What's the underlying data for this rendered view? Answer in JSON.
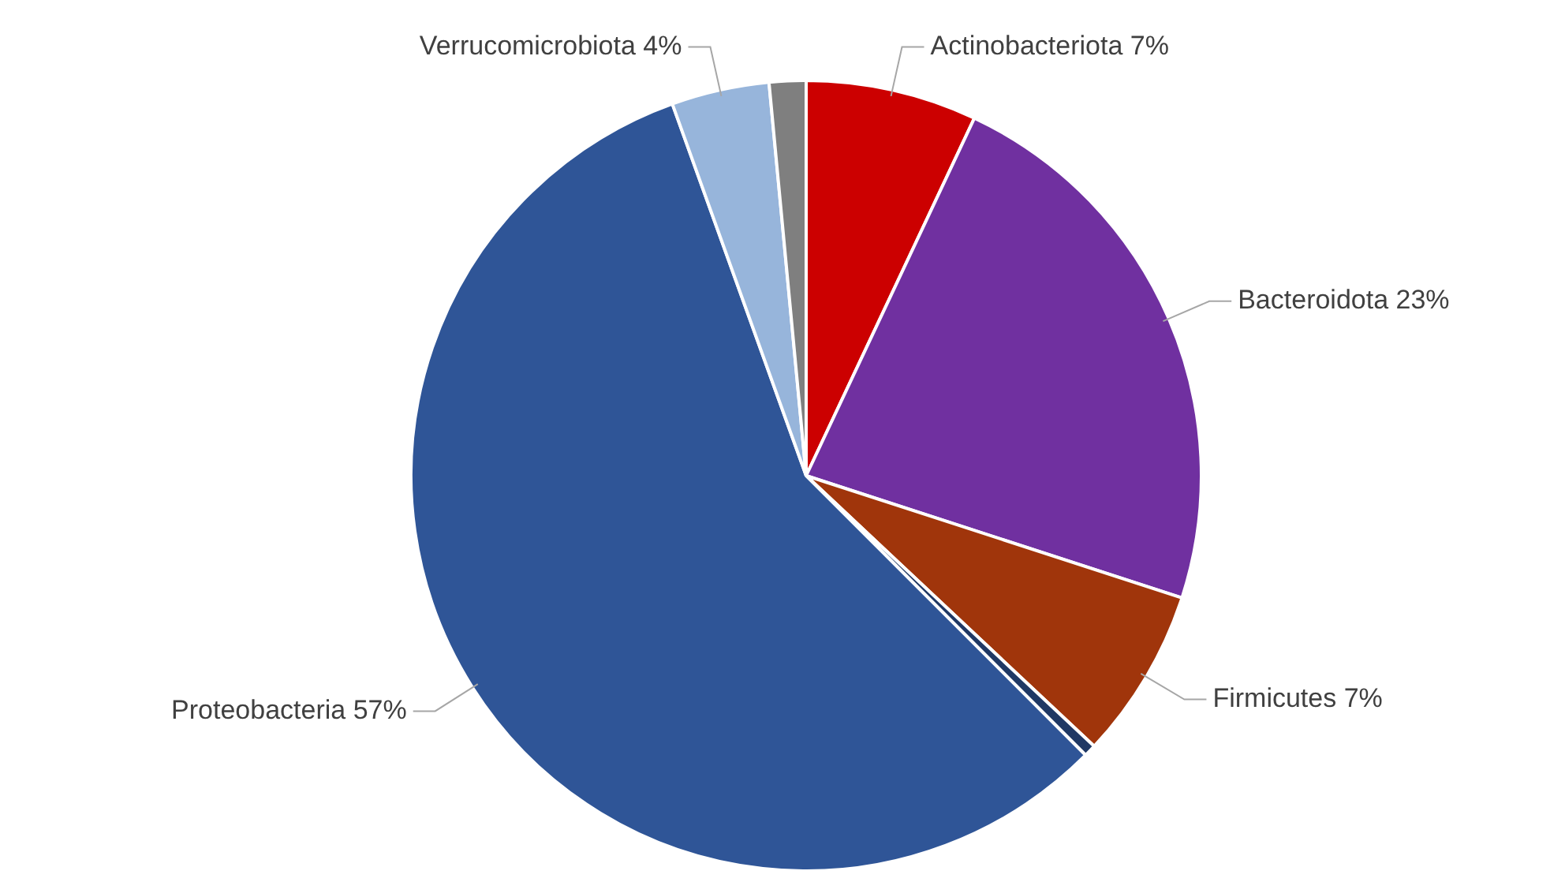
{
  "chart_data": {
    "type": "pie",
    "categories": [
      "Actinobacteriota",
      "Bacteroidota",
      "Firmicutes",
      null,
      "Proteobacteria",
      "Verrucomicrobiota",
      null
    ],
    "values": [
      7,
      23,
      7,
      0.5,
      57,
      4,
      1.5
    ],
    "value_labels": [
      "7%",
      "23%",
      "7%",
      null,
      "57%",
      "4%",
      null
    ],
    "colors": [
      "#cc0000",
      "#7030a0",
      "#a0350b",
      "#1f3864",
      "#2f5597",
      "#97b5db",
      "#7f7f7f"
    ],
    "legend": false
  }
}
